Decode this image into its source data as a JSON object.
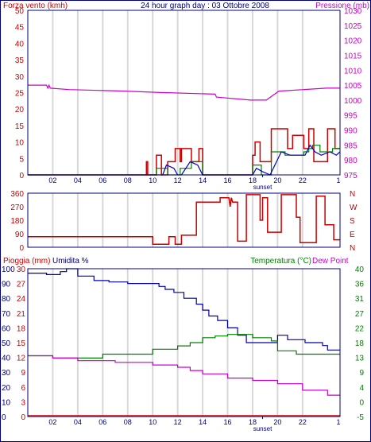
{
  "header": {
    "left_label": "Forza vento (kmh)",
    "title": "24 hour graph day : 03 Ottobre 2008",
    "right_label": "Pressione (mb)"
  },
  "footer": {
    "left_label": "Pioggia (mm)",
    "mid_label": "Umidita %",
    "right_label_temp": "Temperatura (°C)",
    "right_label_dew": "Dew Point"
  },
  "sunset_label": "sunset",
  "x_ticks": [
    "02",
    "04",
    "06",
    "08",
    "10",
    "12",
    "14",
    "16",
    "18",
    "20",
    "22"
  ],
  "x_end_tick": "1",
  "colors": {
    "wind_avg": "#008000",
    "wind_gust": "#cc0000",
    "wind_dir_avg": "#0000cc",
    "pressure": "#cc00cc",
    "dir": "#cc0000",
    "humidity": "#0000aa",
    "temperature": "#008000",
    "dewpoint": "#cc00cc",
    "rain": "#cc0000",
    "frame": "#000080",
    "grid": "#d8d8d8"
  },
  "chart_data": [
    {
      "type": "line",
      "name": "wind-pressure",
      "xlim": [
        0,
        25
      ],
      "y_left": {
        "label": "Forza vento (kmh)",
        "ticks": [
          0,
          5,
          10,
          15,
          20,
          25,
          30,
          35,
          40,
          45,
          50
        ],
        "lim": [
          0,
          50
        ]
      },
      "y_right": {
        "label": "Pressione (mb)",
        "ticks": [
          975,
          980,
          985,
          990,
          995,
          1000,
          1005,
          1010,
          1015,
          1020,
          1025,
          1030
        ],
        "lim": [
          975,
          1030
        ]
      },
      "series": [
        {
          "key": "pressure",
          "axis": "right",
          "x": [
            0,
            1.5,
            1.6,
            1.7,
            1.8,
            3.3,
            7.8,
            10.8,
            11,
            15,
            15.1,
            17.8,
            19.1,
            20.1,
            23.9,
            25
          ],
          "y": [
            1005,
            1005,
            1004,
            1005,
            1004,
            1003.5,
            1003,
            1002.5,
            1002.5,
            1002,
            1001,
            1000,
            1000,
            1003,
            1004,
            1004
          ]
        },
        {
          "key": "wind_gust",
          "axis": "left",
          "x": [
            0,
            9.5,
            9.5,
            9.6,
            9.6,
            10.3,
            10.3,
            10.7,
            10.7,
            11.2,
            11.2,
            11.8,
            11.8,
            12.2,
            12.2,
            12.3,
            12.3,
            13.1,
            13.1,
            13.7,
            13.7,
            14,
            14,
            18,
            18,
            18.2,
            18.2,
            18.6,
            18.6,
            19.5,
            19.5,
            20.8,
            20.8,
            21.2,
            21.2,
            22.1,
            22.1,
            22.5,
            22.5,
            22.9,
            22.9,
            24,
            24,
            24.6,
            24.6,
            25
          ],
          "y": [
            0,
            0,
            4,
            4,
            0,
            0,
            6,
            6,
            0,
            0,
            4,
            4,
            8,
            8,
            4,
            4,
            8,
            8,
            4,
            4,
            8,
            8,
            0,
            0,
            6,
            6,
            10,
            10,
            4,
            4,
            14,
            14,
            8,
            8,
            12,
            12,
            8,
            8,
            14,
            14,
            4,
            4,
            14,
            14,
            8,
            8
          ]
        },
        {
          "key": "wind_avg",
          "axis": "left",
          "x": [
            0,
            10.3,
            10.3,
            11.2,
            11.2,
            12.2,
            12.2,
            13.1,
            13.1,
            14,
            14,
            18,
            18,
            18.7,
            18.7,
            19.5,
            19.5,
            20.6,
            20.6,
            22.1,
            22.1,
            22.5,
            22.5,
            22.8,
            22.8,
            23.4,
            23.4,
            24.4,
            24.4,
            25
          ],
          "y": [
            0,
            0,
            2,
            2,
            0,
            0,
            2,
            2,
            4,
            4,
            0,
            0,
            3,
            3,
            0,
            0,
            7,
            7,
            6,
            6,
            7,
            7,
            8,
            8,
            9,
            9,
            7,
            7,
            8,
            8
          ]
        },
        {
          "key": "wind_dir_avg",
          "axis": "left",
          "x": [
            0,
            10.8,
            11.1,
            11.7,
            12,
            12.3,
            13,
            13.6,
            14,
            18,
            18.3,
            18.8,
            19.4,
            20.3,
            21,
            22.2,
            22.6,
            23,
            23.5,
            24.2,
            24.7,
            25
          ],
          "y": [
            0,
            0,
            3,
            2,
            0,
            0,
            4,
            3,
            0,
            0,
            2,
            1,
            0,
            7,
            6,
            6,
            9,
            7,
            6,
            7,
            6,
            7
          ]
        }
      ]
    },
    {
      "type": "line",
      "name": "wind-direction",
      "xlim": [
        0,
        25
      ],
      "y_left": {
        "ticks": [
          0,
          90,
          180,
          270,
          360
        ],
        "lim": [
          0,
          360
        ]
      },
      "y_right": {
        "ticks": [
          "N",
          "E",
          "S",
          "W",
          "N"
        ]
      },
      "series": [
        {
          "key": "dir",
          "x": [
            0,
            10,
            10,
            11.3,
            11.3,
            11.8,
            11.8,
            12.3,
            12.3,
            13.5,
            13.5,
            15.4,
            15.4,
            16.1,
            16.2,
            16.3,
            16.4,
            16.8,
            16.8,
            17.5,
            17.5,
            18.6,
            18.6,
            18.8,
            18.8,
            19.2,
            19.2,
            20.3,
            20.3,
            21.5,
            21.5,
            21.8,
            21.8,
            23.1,
            23.1,
            23.8,
            23.8,
            24.5,
            24.5,
            25
          ],
          "y": [
            70,
            70,
            20,
            20,
            70,
            70,
            20,
            20,
            80,
            80,
            300,
            300,
            330,
            330,
            270,
            330,
            300,
            300,
            40,
            40,
            350,
            350,
            180,
            180,
            330,
            330,
            100,
            100,
            350,
            350,
            200,
            200,
            30,
            30,
            340,
            340,
            150,
            150,
            50,
            50
          ]
        }
      ]
    },
    {
      "type": "line",
      "name": "rain-humidity-temperature",
      "xlim": [
        0,
        25
      ],
      "y_left_rain": {
        "label": "Pioggia (mm)",
        "ticks": [
          0,
          3,
          6,
          9,
          12,
          15,
          18,
          21,
          24,
          27,
          30
        ],
        "lim": [
          0,
          30
        ]
      },
      "y_left_humidity": {
        "label": "Umidita %",
        "ticks": [
          0,
          10,
          20,
          30,
          40,
          50,
          60,
          70,
          80,
          90,
          100
        ],
        "lim": [
          0,
          100
        ]
      },
      "y_right": {
        "label": "Temperatura (°C)",
        "ticks": [
          -5,
          0,
          4,
          9,
          13,
          18,
          22,
          27,
          31,
          36,
          40
        ],
        "lim": [
          -5,
          40
        ]
      },
      "series": [
        {
          "key": "humidity",
          "axis": "humidity",
          "x": [
            0,
            1.5,
            1.5,
            2.6,
            2.6,
            3.1,
            3.1,
            4,
            4,
            5.3,
            5.3,
            6.5,
            6.5,
            8,
            8,
            10.5,
            10.5,
            11,
            11,
            11.7,
            11.7,
            12.5,
            12.5,
            13.5,
            13.5,
            14,
            14,
            14.5,
            14.5,
            15.2,
            15.2,
            16,
            16,
            16.8,
            16.8,
            17.5,
            17.5,
            20,
            20,
            20.8,
            20.8,
            22.2,
            22.2,
            23.6,
            23.6,
            24,
            24,
            25
          ],
          "y": [
            97,
            97,
            96,
            96,
            98,
            98,
            100,
            100,
            95,
            95,
            92,
            92,
            91,
            91,
            90,
            90,
            88,
            88,
            86,
            86,
            84,
            84,
            80,
            80,
            76,
            76,
            72,
            72,
            68,
            68,
            65,
            65,
            60,
            60,
            55,
            55,
            50,
            50,
            55,
            55,
            52,
            52,
            50,
            50,
            48,
            48,
            45,
            45
          ]
        },
        {
          "key": "temperature",
          "axis": "temp",
          "x": [
            0,
            2,
            2,
            6,
            6,
            10,
            10,
            12,
            12,
            13,
            13,
            14,
            14,
            15,
            15,
            16,
            16,
            18,
            18,
            19.5,
            19.5,
            20,
            20,
            21.5,
            21.5,
            25
          ],
          "y": [
            13.5,
            13.5,
            12.8,
            12.8,
            14,
            14,
            15.5,
            15.5,
            16.5,
            16.5,
            17.5,
            17.5,
            19,
            19,
            19.5,
            19.5,
            20,
            20,
            19,
            19,
            18,
            18,
            15,
            15,
            14,
            14
          ]
        },
        {
          "key": "dewpoint",
          "axis": "temp",
          "x": [
            0,
            2,
            2,
            4,
            4,
            7,
            7,
            10,
            10,
            12,
            12,
            13,
            13,
            14,
            14,
            16,
            16,
            18,
            18,
            20,
            20,
            22,
            22,
            24,
            24,
            25
          ],
          "y": [
            13.5,
            13.5,
            12.8,
            12.8,
            12,
            12,
            11.5,
            11.5,
            10.7,
            10.7,
            10,
            10,
            9,
            9,
            8,
            8,
            6.7,
            6.7,
            6,
            6,
            5,
            5,
            3,
            3,
            1.5,
            1.5
          ]
        },
        {
          "key": "rain",
          "axis": "rain",
          "x": [
            0,
            25
          ],
          "y": [
            0.2,
            0.2
          ]
        }
      ]
    }
  ]
}
